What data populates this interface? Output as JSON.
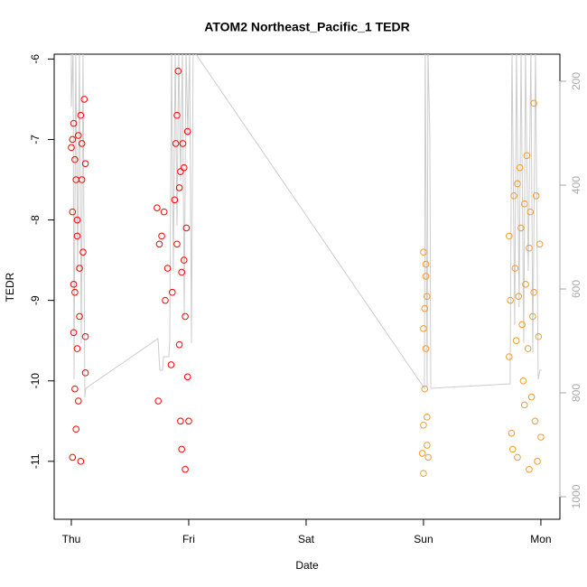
{
  "chart_data": {
    "type": "scatter",
    "title": "ATOM2 Northeast_Pacific_1 TEDR",
    "x_label": "Date",
    "y_label": "TEDR",
    "xlim": [
      -0.146,
      4.162
    ],
    "xticks": [
      {
        "value": 0,
        "label": "Thu"
      },
      {
        "value": 1,
        "label": "Fri"
      },
      {
        "value": 2,
        "label": "Sat"
      },
      {
        "value": 3,
        "label": "Sun"
      },
      {
        "value": 4,
        "label": "Mon"
      }
    ],
    "ylim": [
      -11.72,
      -5.94
    ],
    "yticks": [
      -11,
      -10,
      -9,
      -8,
      -7,
      -6
    ],
    "y2lim": [
      1043.5,
      147.8
    ],
    "y2ticks": [
      200,
      400,
      600,
      800,
      1000
    ],
    "series": [
      {
        "type": "line",
        "axis": "y2",
        "color": "#cccccc",
        "x": [
          0,
          0,
          0.015,
          0.023,
          0.038,
          0.054,
          0.069,
          0.085,
          0.1,
          0.115,
          0.123,
          0.738,
          0.754,
          0.777,
          0.785,
          0.831,
          0.838,
          0.854,
          0.869,
          0.885,
          0.9,
          0.915,
          0.931,
          0.946,
          0.962,
          0.977,
          0.992,
          1.008,
          1.023,
          1.038,
          3.008,
          3.015,
          3.031,
          3.038,
          3.054,
          3.062,
          3.738,
          3.754,
          3.777,
          3.792,
          3.815,
          3.831,
          3.854,
          3.869,
          3.892,
          3.915,
          3.931,
          3.954,
          3.977,
          3.992,
          4.008
        ],
        "values": [
          140,
          248.7,
          140,
          773.9,
          140,
          565.2,
          140,
          704.3,
          140,
          808.7,
          791.3,
          695.6,
          756.5,
          756.5,
          730.4,
          730.4,
          704.3,
          140,
          565.2,
          140,
          478.3,
          140,
          391.3,
          140,
          652.2,
          140,
          304.3,
          140,
          704.3,
          140,
          791.3,
          140,
          791.3,
          140,
          304.3,
          791.3,
          782.6,
          140,
          669.6,
          140,
          634.8,
          140,
          704.3,
          140,
          565.2,
          140,
          721.7,
          140,
          773.9,
          756.5,
          756.5
        ]
      },
      {
        "color": "#ff0000",
        "x": [
          0.0,
          0.01,
          0.02,
          0.01,
          0.02,
          0.03,
          0.02,
          0.03,
          0.01,
          0.04,
          0.04,
          0.05,
          0.05,
          0.06,
          0.06,
          0.07,
          0.07,
          0.08,
          0.08,
          0.09,
          0.1,
          0.11,
          0.12,
          0.12,
          0.12,
          0.03,
          0.05,
          0.09,
          0.73,
          0.75,
          0.77,
          0.79,
          0.8,
          0.82,
          0.85,
          0.74,
          0.86,
          0.88,
          0.89,
          0.9,
          0.91,
          0.9,
          0.92,
          0.93,
          0.93,
          0.94,
          0.94,
          0.95,
          0.96,
          0.97,
          0.97,
          0.98,
          0.99,
          0.99,
          1.0,
          0.96,
          0.92
        ],
        "values": [
          -7.1,
          -7.0,
          -6.8,
          -7.9,
          -8.8,
          -8.9,
          -9.4,
          -10.1,
          -10.95,
          -10.6,
          -7.5,
          -8.2,
          -9.6,
          -6.95,
          -10.25,
          -8.6,
          -9.2,
          -6.7,
          -11.0,
          -7.05,
          -8.4,
          -6.5,
          -7.3,
          -9.45,
          -9.9,
          -7.25,
          -8.0,
          -7.5,
          -7.85,
          -8.3,
          -8.2,
          -7.9,
          -9.0,
          -8.6,
          -9.8,
          -10.25,
          -8.9,
          -7.75,
          -7.05,
          -6.7,
          -6.15,
          -8.3,
          -9.55,
          -10.5,
          -7.4,
          -8.65,
          -10.85,
          -7.05,
          -7.35,
          -9.2,
          -11.1,
          -8.1,
          -6.9,
          -9.95,
          -10.5,
          -8.5,
          -7.6
        ]
      },
      {
        "color": "#f39c2b",
        "x": [
          3.0,
          3.02,
          3.01,
          3.03,
          3.0,
          3.02,
          3.01,
          3.0,
          3.03,
          2.99,
          3.03,
          3.0,
          3.02,
          3.04,
          3.73,
          3.74,
          3.75,
          3.76,
          3.77,
          3.78,
          3.79,
          3.8,
          3.8,
          3.81,
          3.82,
          3.83,
          3.84,
          3.85,
          3.86,
          3.86,
          3.87,
          3.88,
          3.89,
          3.9,
          3.9,
          3.91,
          3.92,
          3.93,
          3.94,
          3.94,
          3.95,
          3.96,
          3.97,
          3.98,
          3.99,
          4.0,
          3.73
        ],
        "values": [
          -8.4,
          -8.7,
          -9.1,
          -8.95,
          -9.35,
          -9.6,
          -10.1,
          -10.55,
          -10.45,
          -10.9,
          -10.8,
          -11.15,
          -8.55,
          -10.95,
          -8.2,
          -9.0,
          -10.65,
          -10.85,
          -7.7,
          -8.6,
          -9.5,
          -7.55,
          -10.95,
          -8.95,
          -7.35,
          -8.1,
          -9.3,
          -10.0,
          -7.8,
          -10.3,
          -8.8,
          -7.2,
          -9.6,
          -8.35,
          -11.1,
          -7.9,
          -10.2,
          -9.2,
          -6.55,
          -8.9,
          -10.5,
          -7.7,
          -11.0,
          -9.45,
          -8.3,
          -10.7,
          -9.7
        ]
      }
    ]
  }
}
